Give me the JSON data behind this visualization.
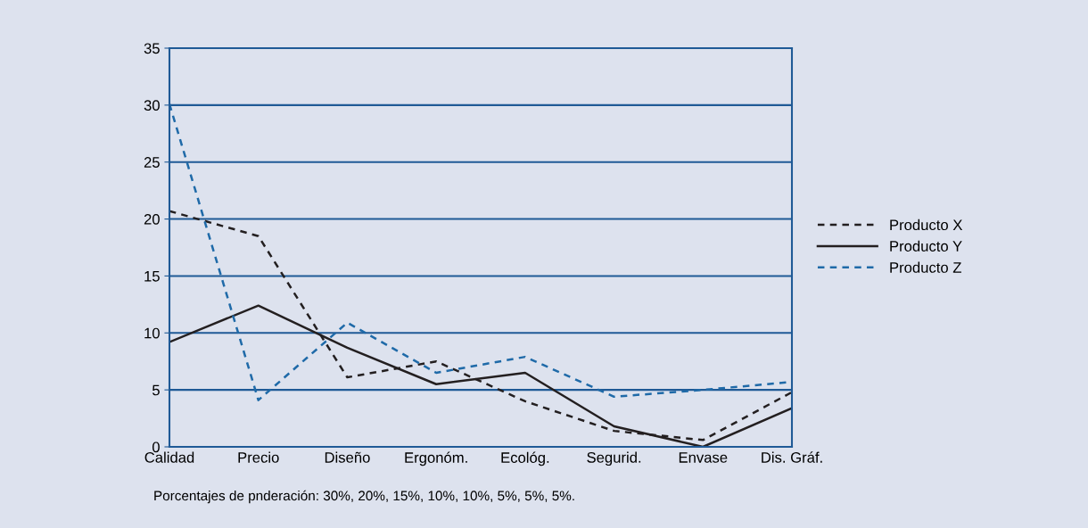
{
  "chart_data": {
    "type": "line",
    "categories": [
      "Calidad",
      "Precio",
      "Diseño",
      "Ergonóm.",
      "Ecológ.",
      "Segurid.",
      "Envase",
      "Dis. Gráf."
    ],
    "series": [
      {
        "name": "Producto X",
        "color": "#231f20",
        "line_style": "dashed",
        "values": [
          20.7,
          18.5,
          6.1,
          7.5,
          4.0,
          1.4,
          0.6,
          4.8
        ]
      },
      {
        "name": "Producto Y",
        "color": "#231f20",
        "line_style": "solid",
        "values": [
          9.2,
          12.4,
          8.7,
          5.5,
          6.5,
          1.8,
          0.0,
          3.4
        ]
      },
      {
        "name": "Producto Z",
        "color": "#1f6aa8",
        "line_style": "dashed",
        "values": [
          30.1,
          4.1,
          10.9,
          6.5,
          7.9,
          4.4,
          5.0,
          5.7
        ]
      }
    ],
    "ylim": [
      0,
      35
    ],
    "yticks": [
      0,
      5,
      10,
      15,
      20,
      25,
      30,
      35
    ],
    "grid": "y",
    "legend": "right",
    "marker": "none",
    "annotations": [
      "Porcentajes de pnderación: 30%, 20%, 15%, 10%, 10%, 5%, 5%, 5%."
    ]
  }
}
